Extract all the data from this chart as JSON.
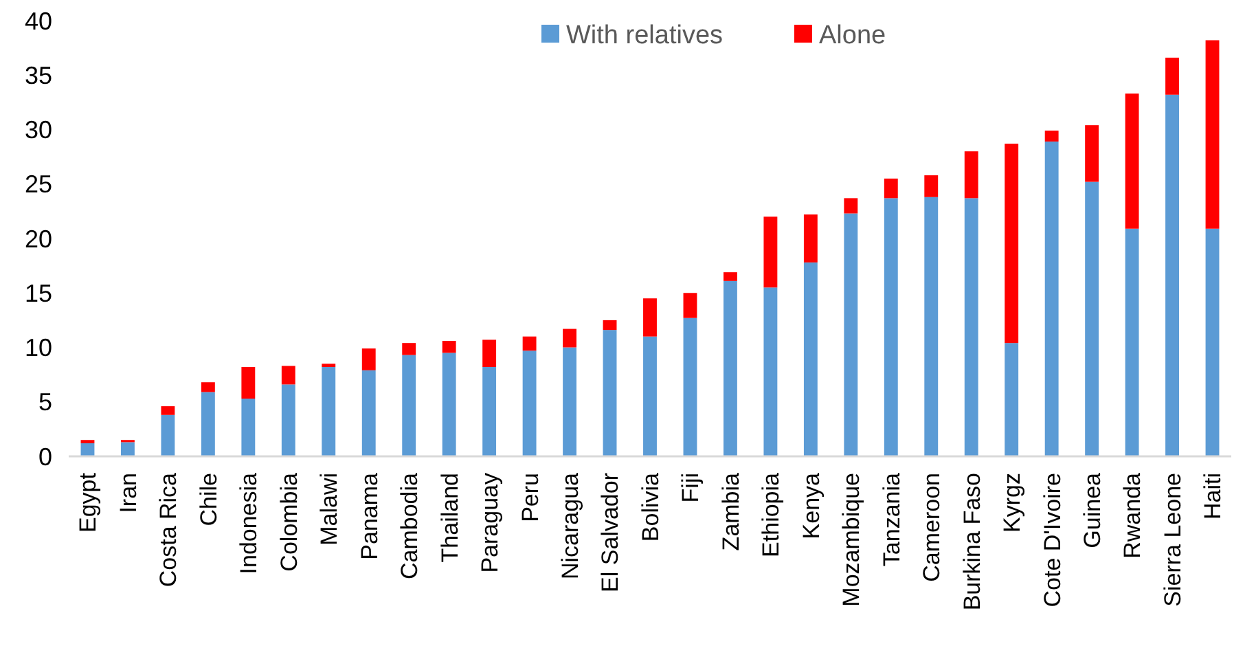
{
  "chart_data": {
    "type": "bar",
    "stacked": true,
    "legend": "top",
    "grid": false,
    "categories": [
      "Egypt",
      "Iran",
      "Costa Rica",
      "Chile",
      "Indonesia",
      "Colombia",
      "Malawi",
      "Panama",
      "Cambodia",
      "Thailand",
      "Paraguay",
      "Peru",
      "Nicaragua",
      "El Salvador",
      "Bolivia",
      "Fiji",
      "Zambia",
      "Ethiopia",
      "Kenya",
      "Mozambique",
      "Tanzania",
      "Cameroon",
      "Burkina Faso",
      "Kyrgz",
      "Cote D'Ivoire",
      "Guinea",
      "Rwanda",
      "Sierra Leone",
      "Haiti"
    ],
    "series": [
      {
        "name": "With relatives",
        "color": "#5b9bd5",
        "values": [
          1.2,
          1.3,
          3.8,
          5.9,
          5.3,
          6.6,
          8.2,
          7.9,
          9.3,
          9.5,
          8.2,
          9.7,
          10.0,
          11.6,
          11.0,
          12.7,
          16.1,
          15.5,
          17.8,
          22.3,
          23.7,
          23.8,
          23.7,
          10.4,
          28.9,
          25.2,
          20.9,
          33.2,
          20.9
        ]
      },
      {
        "name": "Alone",
        "color": "#ff0000",
        "values": [
          0.3,
          0.2,
          0.8,
          0.9,
          2.9,
          1.7,
          0.3,
          2.0,
          1.1,
          1.1,
          2.5,
          1.3,
          1.7,
          0.9,
          3.5,
          2.3,
          0.8,
          6.5,
          4.4,
          1.4,
          1.8,
          2.0,
          4.3,
          18.3,
          1.0,
          5.2,
          12.4,
          3.4,
          17.3
        ]
      }
    ],
    "ylim": [
      0,
      40
    ],
    "yticks": [
      0,
      5,
      10,
      15,
      20,
      25,
      30,
      35,
      40
    ]
  }
}
